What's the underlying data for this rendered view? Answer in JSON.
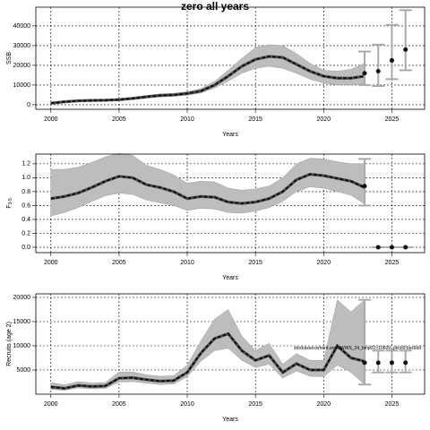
{
  "chart_data": [
    {
      "type": "line",
      "title": "zero all years",
      "ylabel": "SSB",
      "xlabel": "Years",
      "x": [
        2000,
        2001,
        2002,
        2003,
        2004,
        2005,
        2006,
        2007,
        2008,
        2009,
        2010,
        2011,
        2012,
        2013,
        2014,
        2015,
        2016,
        2017,
        2018,
        2019,
        2020,
        2021,
        2022,
        2023
      ],
      "values": [
        800,
        1500,
        2000,
        2200,
        2300,
        2600,
        3200,
        4000,
        4700,
        5000,
        5700,
        7000,
        10000,
        14500,
        19500,
        23000,
        24500,
        24000,
        20500,
        17000,
        14500,
        13500,
        13500,
        14500
      ],
      "lower": [
        500,
        1100,
        1600,
        1800,
        1900,
        2200,
        2700,
        3400,
        4000,
        4300,
        4900,
        6000,
        8500,
        12000,
        16000,
        18500,
        19500,
        18500,
        16000,
        13000,
        11000,
        10000,
        10000,
        10500
      ],
      "upper": [
        1200,
        2000,
        2500,
        2700,
        2800,
        3100,
        3800,
        4700,
        5500,
        5800,
        6600,
        8200,
        11800,
        17500,
        23500,
        29000,
        30500,
        30000,
        26000,
        21000,
        17500,
        17000,
        18000,
        21000
      ],
      "proj_x": [
        2023,
        2024,
        2025,
        2026
      ],
      "proj_values": [
        16000,
        17000,
        22500,
        28000
      ],
      "proj_lower": [
        10000,
        9500,
        13000,
        17500
      ],
      "proj_upper": [
        27000,
        30500,
        40500,
        48000
      ],
      "xlim": [
        1998.9,
        2027.4
      ],
      "ylim": [
        -2300,
        49500
      ],
      "xticks": [
        2000,
        2005,
        2010,
        2015,
        2020,
        2025
      ],
      "yticks": [
        0,
        10000,
        20000,
        30000,
        40000
      ],
      "grid": true,
      "color": "#111111",
      "band_color": "#bdbdbd",
      "errorbar_color": "#aaaaaa"
    },
    {
      "type": "line",
      "ylabel": "F",
      "ylabel_sub": "3-5",
      "xlabel": "Years",
      "x": [
        2000,
        2001,
        2002,
        2003,
        2004,
        2005,
        2006,
        2007,
        2008,
        2009,
        2010,
        2011,
        2012,
        2013,
        2014,
        2015,
        2016,
        2017,
        2018,
        2019,
        2020,
        2021,
        2022,
        2023
      ],
      "values": [
        0.7,
        0.73,
        0.78,
        0.86,
        0.95,
        1.02,
        1.0,
        0.9,
        0.86,
        0.8,
        0.7,
        0.73,
        0.72,
        0.65,
        0.63,
        0.65,
        0.7,
        0.8,
        0.97,
        1.05,
        1.03,
        0.99,
        0.95,
        0.86
      ],
      "lower": [
        0.45,
        0.5,
        0.57,
        0.66,
        0.74,
        0.78,
        0.76,
        0.68,
        0.64,
        0.6,
        0.53,
        0.56,
        0.55,
        0.5,
        0.49,
        0.52,
        0.57,
        0.66,
        0.8,
        0.87,
        0.85,
        0.8,
        0.75,
        0.62
      ],
      "upper": [
        1.12,
        1.12,
        1.15,
        1.22,
        1.3,
        1.35,
        1.32,
        1.18,
        1.12,
        1.04,
        0.92,
        0.95,
        0.94,
        0.85,
        0.82,
        0.84,
        0.88,
        1.0,
        1.2,
        1.28,
        1.27,
        1.23,
        1.2,
        1.2
      ],
      "proj_x": [
        2023,
        2024,
        2025,
        2026
      ],
      "proj_values": [
        0.88,
        0,
        0,
        0
      ],
      "proj_lower": [
        0.6,
        0,
        0,
        0
      ],
      "proj_upper": [
        1.27,
        0,
        0,
        0
      ],
      "xlim": [
        1998.9,
        2027.4
      ],
      "ylim": [
        -0.077,
        1.34
      ],
      "xticks": [
        2000,
        2005,
        2010,
        2015,
        2020,
        2025
      ],
      "yticks": [
        {
          "value": 0,
          "label": "0.0"
        },
        0.2,
        0.4,
        0.6,
        0.8,
        {
          "value": 1,
          "label": "1.0"
        },
        1.2
      ],
      "grid": true,
      "color": "#111111",
      "band_color": "#bdbdbd",
      "errorbar_color": "#aaaaaa"
    },
    {
      "type": "line",
      "ylabel": "Recruits (age 2)",
      "xlabel": "Years",
      "annotation": "stockassessment.org/NWWS_24_bmp02:r10609_phcb9:bss5dd",
      "x": [
        2000,
        2001,
        2002,
        2003,
        2004,
        2005,
        2006,
        2007,
        2008,
        2009,
        2010,
        2011,
        2012,
        2013,
        2014,
        2015,
        2016,
        2017,
        2018,
        2019,
        2020,
        2021,
        2022,
        2023
      ],
      "values": [
        1500,
        1200,
        1800,
        1600,
        1700,
        3300,
        3400,
        3000,
        2700,
        2800,
        4500,
        8500,
        11500,
        12500,
        9000,
        7000,
        8000,
        4500,
        6300,
        5000,
        5000,
        10000,
        7500,
        6800
      ],
      "lower": [
        1000,
        800,
        1300,
        1100,
        1200,
        2500,
        2600,
        2300,
        2000,
        2100,
        3600,
        6800,
        9000,
        9500,
        7000,
        5500,
        6200,
        3300,
        4800,
        3700,
        3600,
        6000,
        4500,
        2000
      ],
      "upper": [
        2400,
        1900,
        2600,
        2300,
        2400,
        4600,
        4600,
        4000,
        3700,
        3800,
        6000,
        11000,
        15500,
        17500,
        12000,
        9000,
        10500,
        6200,
        8400,
        7000,
        7000,
        19500,
        17000,
        19500
      ],
      "proj_x": [
        2023,
        2024,
        2025,
        2026
      ],
      "proj_values": [
        6500,
        6500,
        6500,
        6500
      ],
      "proj_lower": [
        2000,
        4500,
        4500,
        4500
      ],
      "proj_upper": [
        19500,
        9000,
        9000,
        9000
      ],
      "xlim": [
        1998.9,
        2027.4
      ],
      "ylim": [
        0,
        20740
      ],
      "xticks": [
        2000,
        2005,
        2010,
        2015,
        2020,
        2025
      ],
      "yticks": [
        5000,
        10000,
        15000,
        20000
      ],
      "grid": true,
      "color": "#111111",
      "band_color": "#bdbdbd",
      "errorbar_color": "#aaaaaa"
    }
  ]
}
